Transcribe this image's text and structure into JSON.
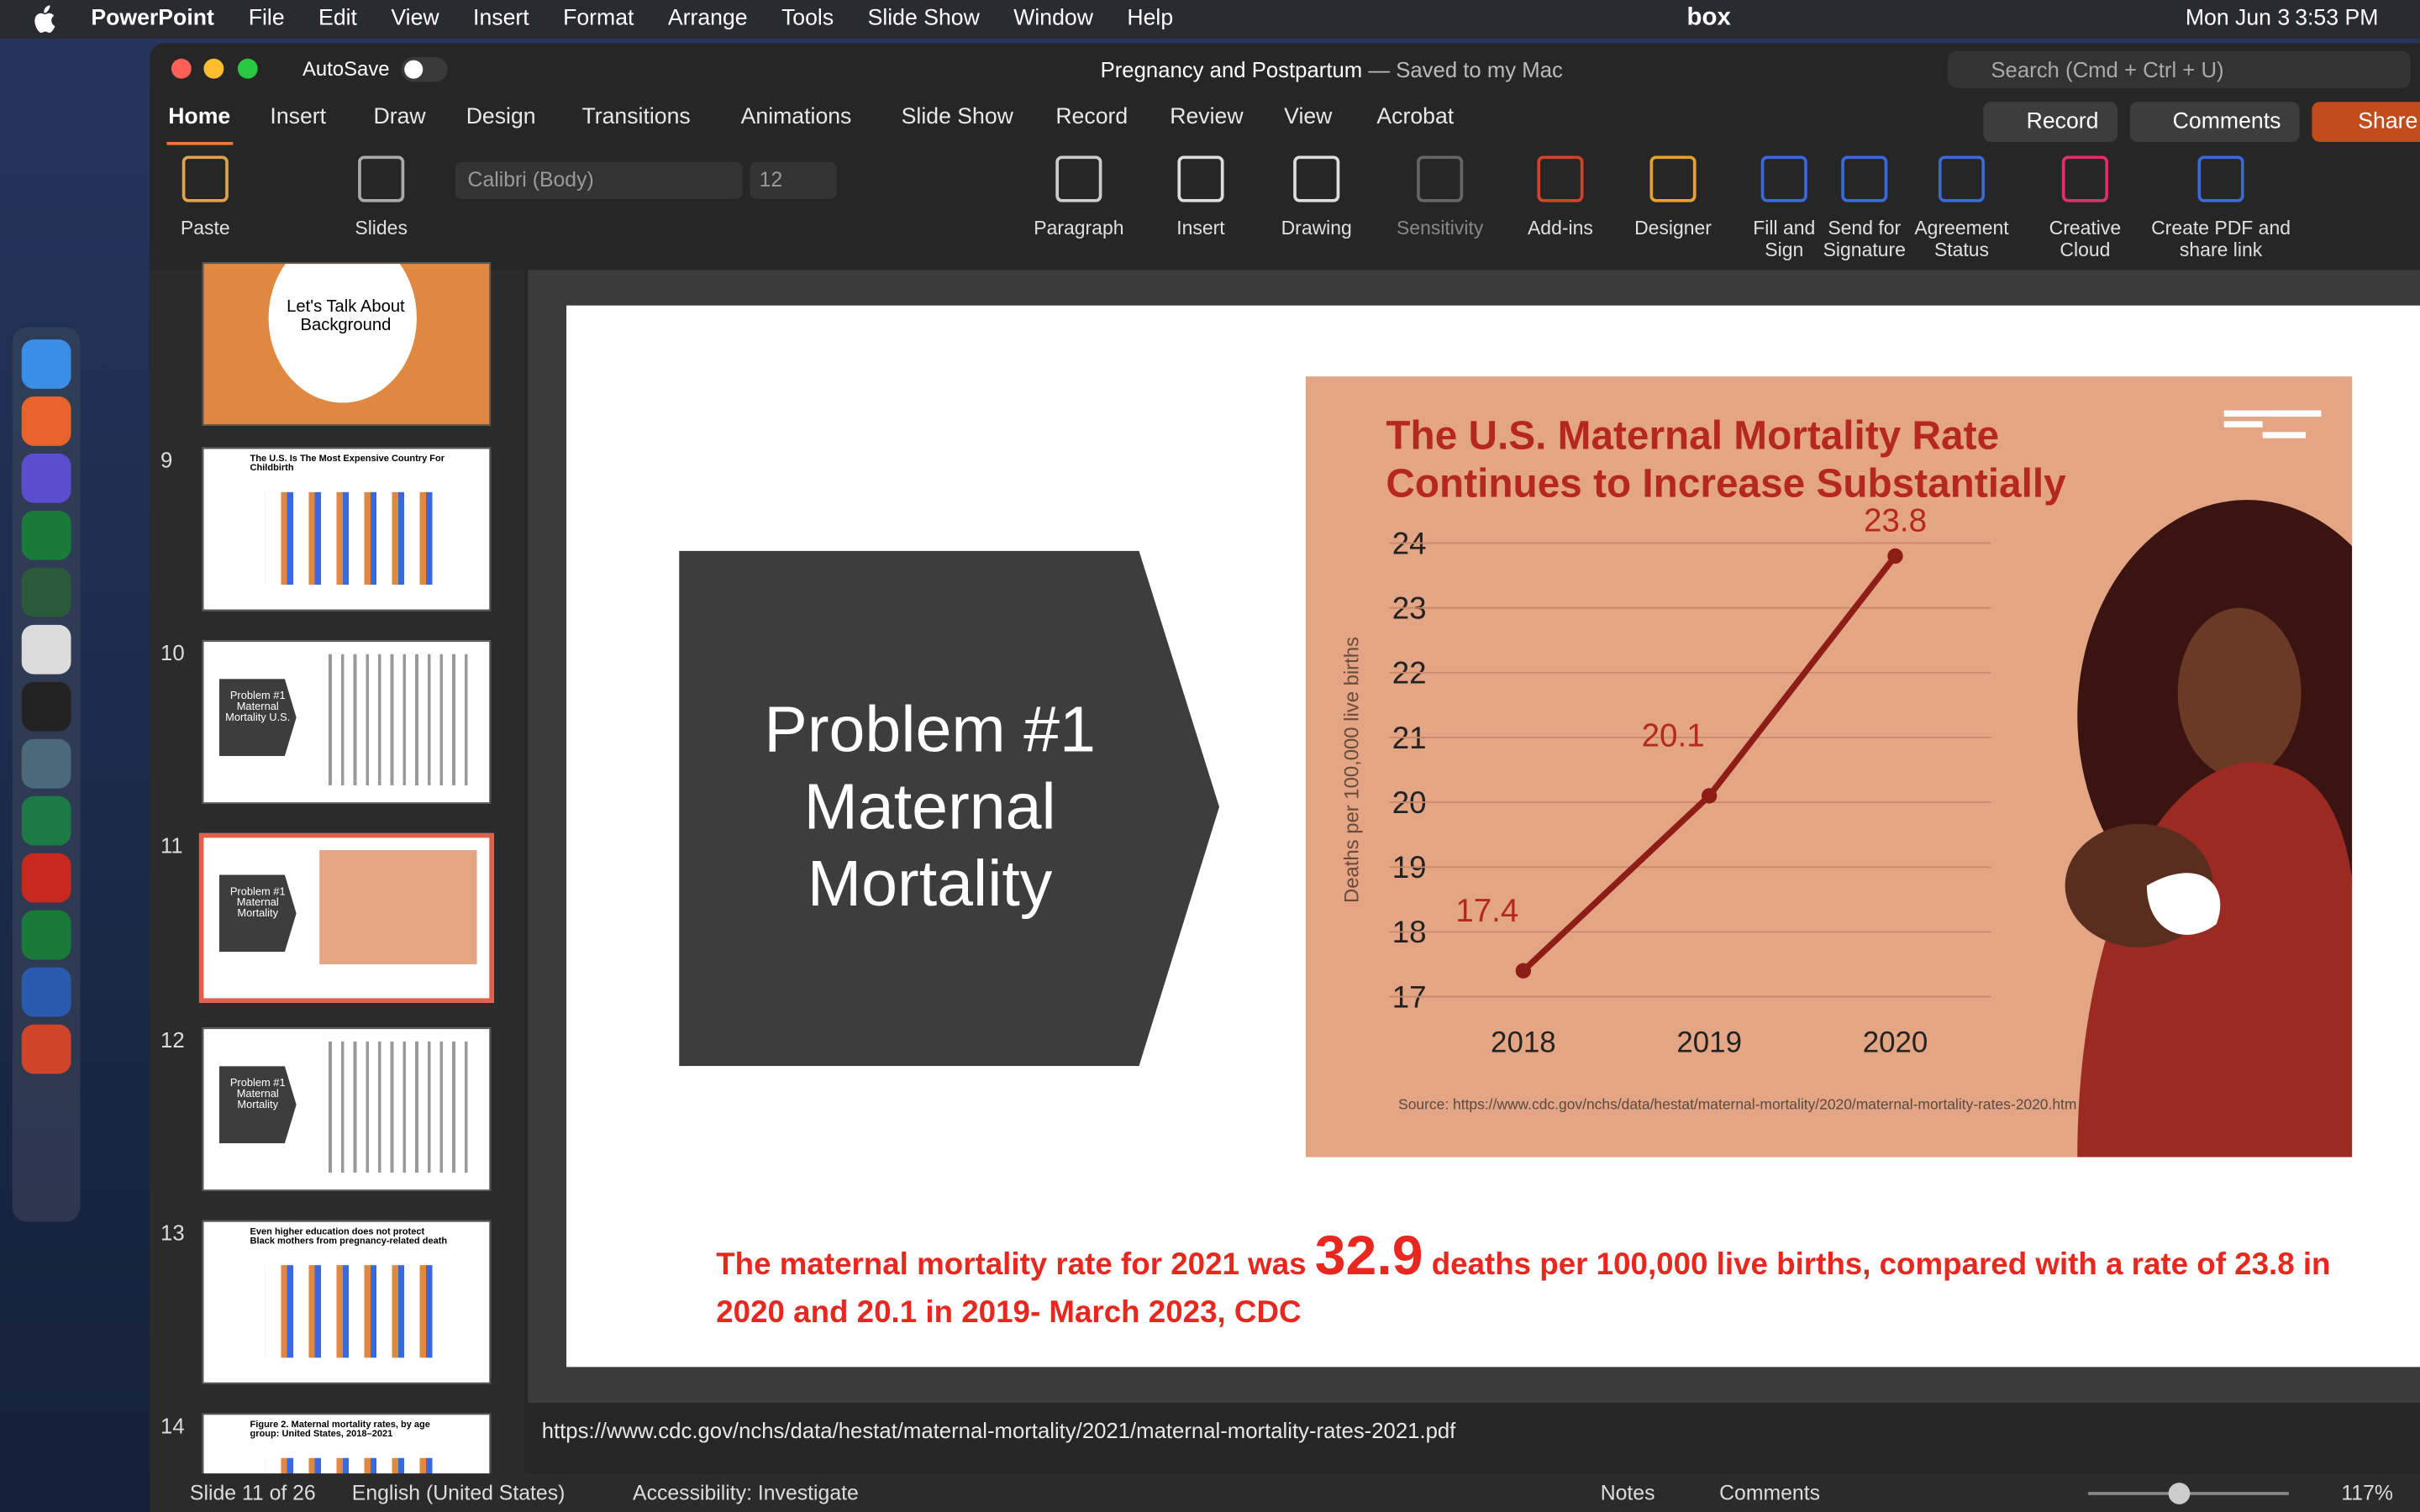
{
  "menubar": {
    "app": "PowerPoint",
    "items": [
      "File",
      "Edit",
      "View",
      "Insert",
      "Format",
      "Arrange",
      "Tools",
      "Slide Show",
      "Window",
      "Help"
    ],
    "box": "box",
    "date": "Mon Jun 3",
    "time": "3:53 PM"
  },
  "titlebar": {
    "autosave": "AutoSave",
    "doc": "Pregnancy and Postpartum",
    "status": "— Saved to my Mac",
    "search": "Search (Cmd + Ctrl + U)"
  },
  "tabs": [
    "Home",
    "Insert",
    "Draw",
    "Design",
    "Transitions",
    "Animations",
    "Slide Show",
    "Record",
    "Review",
    "View",
    "Acrobat"
  ],
  "tab_buttons": [
    "Record",
    "Comments",
    "Share"
  ],
  "ribbon": {
    "font": "Calibri (Body)",
    "size": "12",
    "buttons": [
      "Paste",
      "Slides",
      "Paragraph",
      "Insert",
      "Drawing",
      "Sensitivity",
      "Add-ins",
      "Designer",
      "Fill and Sign",
      "Send for Signature",
      "Agreement Status",
      "Creative Cloud",
      "Create PDF and share link"
    ]
  },
  "thumbnails": [
    {
      "num": "",
      "text": "Let's Talk About Background"
    },
    {
      "num": "9",
      "text": "The U.S. Is The Most Expensive Country For Childbirth"
    },
    {
      "num": "10",
      "text": "Problem #1 Maternal Mortality U.S."
    },
    {
      "num": "11",
      "text": "Problem #1 Maternal Mortality"
    },
    {
      "num": "12",
      "text": "Problem #1 Maternal Mortality"
    },
    {
      "num": "13",
      "text": "Even higher education does not protect Black mothers from pregnancy-related death"
    },
    {
      "num": "14",
      "text": "Figure 2. Maternal mortality rates, by age group: United States, 2018–2021"
    }
  ],
  "slide": {
    "shape_text": [
      "Problem #1",
      "Maternal",
      "Mortality"
    ],
    "chart": {
      "type": "line",
      "title": [
        "The U.S. Maternal Mortality Rate",
        "Continues to Increase Substantially"
      ],
      "y_label": "Deaths per 100,000 live births",
      "categories": [
        "2018",
        "2019",
        "2020"
      ],
      "values": [
        17.4,
        20.1,
        23.8
      ],
      "color": "#8e1d17",
      "ylim": [
        17,
        24
      ],
      "yticks": [
        17,
        18,
        19,
        20,
        21,
        22,
        23,
        24
      ],
      "grid": true,
      "source": "Source: https://www.cdc.gov/nchs/data/hestat/maternal-mortality/2020/maternal-mortality-rates-2020.htm"
    },
    "footer": [
      "The maternal mortality rate for 2021 was ",
      "32.9",
      " deaths per 100,000 live births, compared with a rate of 23.8 in 2020 and 20.1 in 2019- March 2023, CDC"
    ]
  },
  "notes": "https://www.cdc.gov/nchs/data/hestat/maternal-mortality/2021/maternal-mortality-rates-2021.pdf",
  "statusbar": {
    "slide": "Slide 11 of 26",
    "language": "English (United States)",
    "accessibility": "Accessibility: Investigate",
    "notes": "Notes",
    "comments": "Comments",
    "zoom": "117%"
  }
}
